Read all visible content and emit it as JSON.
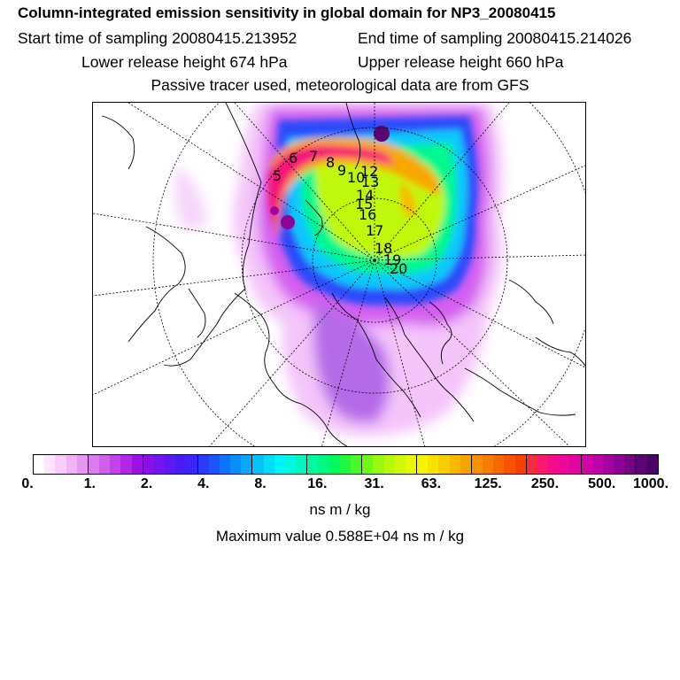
{
  "header": {
    "title": "Column-integrated emission sensitivity in global domain for NP3_20080415",
    "start_time": "Start time of sampling 20080415.213952",
    "end_time": "End time of sampling 20080415.214026",
    "lower_height": "Lower release height  674 hPa",
    "upper_height": "Upper release height  660 hPa",
    "tracer_info": "Passive tracer used, meteorological data are from GFS"
  },
  "map": {
    "projection": "polar-stereographic",
    "track_labels": [
      "5",
      "6",
      "7",
      "8",
      "9",
      "10",
      "12",
      "13",
      "14",
      "15",
      "16",
      "17",
      "18",
      "19",
      "20"
    ]
  },
  "legend": {
    "ticks": [
      "0.",
      "1.",
      "2.",
      "4.",
      "8.",
      "16.",
      "31.",
      "63.",
      "125.",
      "250.",
      "500.",
      "1000."
    ],
    "colors": [
      "#ffffff",
      "#fde6ff",
      "#f8ccfb",
      "#f2b2f8",
      "#e896f4",
      "#dd7bf0",
      "#d05fec",
      "#c244e8",
      "#b028e4",
      "#9c12e0",
      "#8a10e8",
      "#7414ec",
      "#5e18f0",
      "#4a1cf4",
      "#3a26f8",
      "#2a3cfa",
      "#1c56fb",
      "#0e72fc",
      "#0a8efc",
      "#08a8fc",
      "#06c2fc",
      "#04dcfc",
      "#00f4fc",
      "#00f8e0",
      "#00f8c0",
      "#00f8a0",
      "#00f880",
      "#00f860",
      "#20f840",
      "#48f828",
      "#70f818",
      "#98f810",
      "#b8f80c",
      "#d0f808",
      "#e8f804",
      "#f8f400",
      "#f8e000",
      "#f8cc00",
      "#f8b800",
      "#f8a400",
      "#f89000",
      "#f87c00",
      "#f86800",
      "#f85400",
      "#f84000",
      "#f82c40",
      "#f81874",
      "#f40c8c",
      "#ec0898",
      "#e004a0",
      "#d004a8",
      "#bc04a8",
      "#a404a0",
      "#8c0494",
      "#740484",
      "#5c0474",
      "#480464"
    ],
    "units": "ns m / kg"
  },
  "max_value": "Maximum value  0.588E+04 ns m / kg"
}
